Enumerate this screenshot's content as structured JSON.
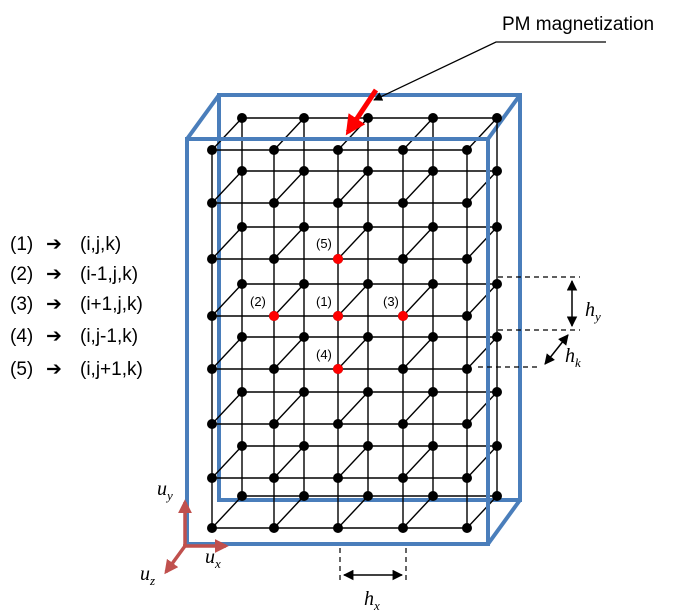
{
  "title": "PM magnetization",
  "legend": [
    {
      "index": "(1)",
      "arrow": "➔",
      "coord": "(i,j,k)"
    },
    {
      "index": "(2)",
      "arrow": "➔",
      "coord": "(i-1,j,k)"
    },
    {
      "index": "(3)",
      "arrow": "➔",
      "coord": "(i+1,j,k)"
    },
    {
      "index": "(4)",
      "arrow": "➔",
      "coord": "(i,j-1,k)"
    },
    {
      "index": "(5)",
      "arrow": "➔",
      "coord": "(i,j+1,k)"
    }
  ],
  "node_labels": {
    "n1": "(1)",
    "n2": "(2)",
    "n3": "(3)",
    "n4": "(4)",
    "n5": "(5)"
  },
  "dimensions": {
    "hy": {
      "main": "h",
      "sub": "y"
    },
    "hk": {
      "main": "h",
      "sub": "k"
    },
    "hx": {
      "main": "h",
      "sub": "x"
    }
  },
  "axes": {
    "uy": {
      "main": "u",
      "sub": "y"
    },
    "ux": {
      "main": "u",
      "sub": "x"
    },
    "uz": {
      "main": "u",
      "sub": "z"
    }
  },
  "colors": {
    "box": "#4a7ebb",
    "grid": "#000000",
    "highlight": "#ff0000",
    "axis_arrow": "#c0504d",
    "magnetization_arrow": "#ff0000"
  }
}
